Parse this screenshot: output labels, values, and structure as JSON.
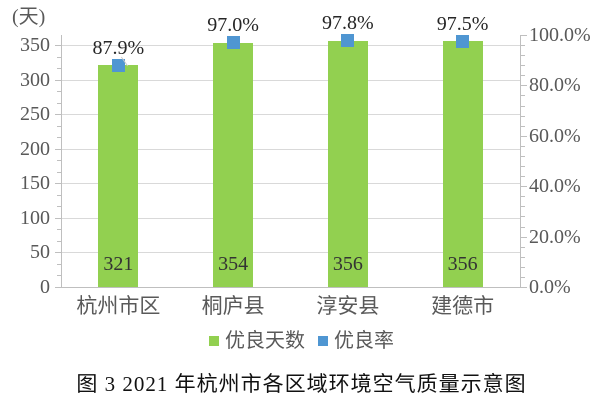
{
  "chart_data": {
    "type": "bar",
    "title": "",
    "caption": "图 3  2021 年杭州市各区域环境空气质量示意图",
    "categories": [
      "杭州市区",
      "桐庐县",
      "淳安县",
      "建德市"
    ],
    "series": [
      {
        "name": "优良天数",
        "type": "bar",
        "axis": "left",
        "values": [
          321,
          354,
          356,
          356
        ],
        "data_labels": [
          "321",
          "354",
          "356",
          "356"
        ],
        "color": "#92d050"
      },
      {
        "name": "优良率",
        "type": "point-square",
        "axis": "right",
        "values": [
          87.9,
          97.0,
          97.8,
          97.5
        ],
        "data_labels": [
          "87.9%",
          "97.0%",
          "97.8%",
          "97.5%"
        ],
        "color": "#4f96d2"
      }
    ],
    "left_axis": {
      "title": "(天)",
      "min": 0,
      "max": 365,
      "major_unit": 50,
      "tick_values": [
        0,
        50,
        100,
        150,
        200,
        250,
        300,
        350
      ],
      "tick_labels": [
        "0",
        "50",
        "100",
        "150",
        "200",
        "250",
        "300",
        "350"
      ]
    },
    "right_axis": {
      "min": 0,
      "max": 100,
      "major_unit": 20,
      "tick_values": [
        0,
        20,
        40,
        60,
        80,
        100
      ],
      "tick_labels": [
        "0.0%",
        "20.0%",
        "40.0%",
        "60.0%",
        "80.0%",
        "100.0%"
      ]
    },
    "legend": {
      "position": "bottom",
      "entries": [
        {
          "label": "优良天数",
          "color": "#92d050"
        },
        {
          "label": "优良率",
          "color": "#4f96d2"
        }
      ]
    },
    "grid": "horizontal-major",
    "style_colors": {
      "gridline": "#d9d9d9",
      "axis_line": "#bfbfbf",
      "tick_text": "#595959",
      "data_label_text": "#333333",
      "rate_label_text": "#262626",
      "caption_text": "#111111",
      "background": "#ffffff"
    }
  }
}
